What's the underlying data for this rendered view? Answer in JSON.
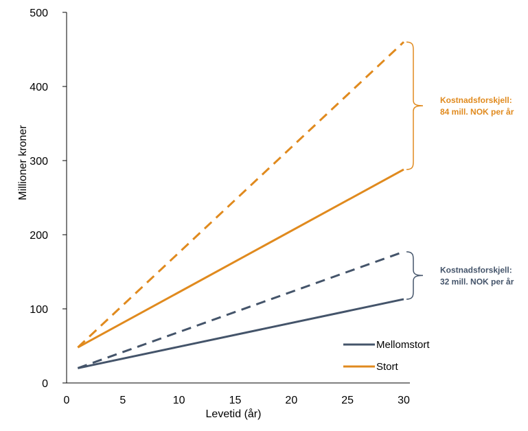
{
  "chart_data": {
    "type": "line",
    "xlabel": "Levetid (år)",
    "ylabel": "Millioner kroner",
    "xlim": [
      0,
      30
    ],
    "ylim": [
      0,
      500
    ],
    "xticks": [
      0,
      5,
      10,
      15,
      20,
      25,
      30
    ],
    "yticks": [
      0,
      100,
      200,
      300,
      400,
      500
    ],
    "grid": false,
    "legend_position": "bottom-right",
    "series": [
      {
        "name": "Mellomstort",
        "style": "solid",
        "color": "#44546A",
        "x": [
          1,
          30
        ],
        "y": [
          20,
          113
        ]
      },
      {
        "name": "",
        "style": "dashed",
        "color": "#44546A",
        "x": [
          1,
          30
        ],
        "y": [
          20,
          177
        ]
      },
      {
        "name": "Stort",
        "style": "solid",
        "color": "#E08A1E",
        "x": [
          1,
          30
        ],
        "y": [
          48,
          288
        ]
      },
      {
        "name": "",
        "style": "dashed",
        "color": "#E08A1E",
        "x": [
          1,
          30
        ],
        "y": [
          48,
          460
        ]
      }
    ],
    "annotations": [
      {
        "series_color": "#E08A1E",
        "lines": [
          "Kostnadsforskjell:",
          "84 mill. NOK per år"
        ],
        "brace_from": 288,
        "brace_to": 460
      },
      {
        "series_color": "#44546A",
        "lines": [
          "Kostnadsforskjell:",
          "32 mill. NOK per år"
        ],
        "brace_from": 113,
        "brace_to": 177
      }
    ]
  }
}
